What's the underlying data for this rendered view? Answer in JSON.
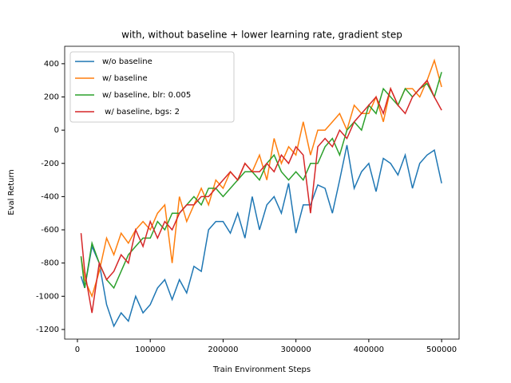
{
  "chart_data": {
    "type": "line",
    "title": "with, without baseline + lower learning rate, gradient step",
    "xlabel": "Train Environment Steps",
    "ylabel": "Eval Return",
    "x": [
      5000,
      10000,
      20000,
      30000,
      40000,
      50000,
      60000,
      70000,
      80000,
      90000,
      100000,
      110000,
      120000,
      130000,
      140000,
      150000,
      160000,
      170000,
      180000,
      190000,
      200000,
      210000,
      220000,
      230000,
      240000,
      250000,
      260000,
      270000,
      280000,
      290000,
      300000,
      310000,
      320000,
      330000,
      340000,
      350000,
      360000,
      370000,
      380000,
      390000,
      400000,
      410000,
      420000,
      430000,
      440000,
      450000,
      460000,
      470000,
      480000,
      490000,
      500000
    ],
    "series": [
      {
        "name": "w/o baseline",
        "color": "#1f77b4",
        "values": [
          -880,
          -950,
          -700,
          -800,
          -1050,
          -1180,
          -1100,
          -1150,
          -1000,
          -1100,
          -1050,
          -950,
          -900,
          -1020,
          -900,
          -980,
          -820,
          -850,
          -600,
          -550,
          -550,
          -620,
          -500,
          -650,
          -400,
          -600,
          -450,
          -400,
          -500,
          -320,
          -620,
          -450,
          -450,
          -330,
          -350,
          -500,
          -300,
          -90,
          -350,
          -250,
          -200,
          -370,
          -170,
          -200,
          -270,
          -150,
          -350,
          -200,
          -150,
          -120,
          -320
        ]
      },
      {
        "name": "w/ baseline",
        "color": "#ff7f0e",
        "values": [
          -760,
          -900,
          -1000,
          -850,
          -650,
          -750,
          -620,
          -680,
          -600,
          -550,
          -600,
          -500,
          -450,
          -800,
          -400,
          -550,
          -450,
          -350,
          -450,
          -300,
          -350,
          -250,
          -300,
          -200,
          -250,
          -150,
          -300,
          -50,
          -200,
          -100,
          -150,
          50,
          -150,
          0,
          0,
          50,
          100,
          0,
          150,
          100,
          100,
          200,
          50,
          250,
          150,
          250,
          250,
          200,
          300,
          420,
          260
        ]
      },
      {
        "name": "w/ baseline, blr: 0.005",
        "color": "#2ca02c",
        "values": [
          -760,
          -950,
          -680,
          -800,
          -900,
          -950,
          -850,
          -750,
          -700,
          -650,
          -650,
          -550,
          -600,
          -500,
          -500,
          -450,
          -400,
          -450,
          -350,
          -350,
          -400,
          -350,
          -300,
          -250,
          -250,
          -300,
          -200,
          -150,
          -250,
          -300,
          -250,
          -300,
          -200,
          -200,
          -100,
          -50,
          -150,
          0,
          50,
          0,
          150,
          100,
          250,
          200,
          150,
          250,
          200,
          250,
          280,
          200,
          350
        ]
      },
      {
        "name": " w/ baseline, bgs: 2",
        "color": "#d62728",
        "values": [
          -620,
          -850,
          -1100,
          -800,
          -900,
          -850,
          -750,
          -800,
          -600,
          -700,
          -550,
          -650,
          -550,
          -600,
          -500,
          -450,
          -450,
          -400,
          -400,
          -350,
          -300,
          -250,
          -300,
          -200,
          -250,
          -250,
          -200,
          -250,
          -150,
          -200,
          -100,
          -150,
          -500,
          -100,
          -50,
          -100,
          0,
          -50,
          50,
          100,
          150,
          200,
          100,
          250,
          150,
          100,
          200,
          250,
          300,
          200,
          120
        ]
      }
    ],
    "xlim": [
      -17500,
      524000
    ],
    "ylim": [
      -1258,
      505
    ],
    "xticks": [
      0,
      100000,
      200000,
      300000,
      400000,
      500000
    ],
    "yticks": [
      -1200,
      -1000,
      -800,
      -600,
      -400,
      -200,
      0,
      200,
      400
    ],
    "legend": "upper left"
  }
}
